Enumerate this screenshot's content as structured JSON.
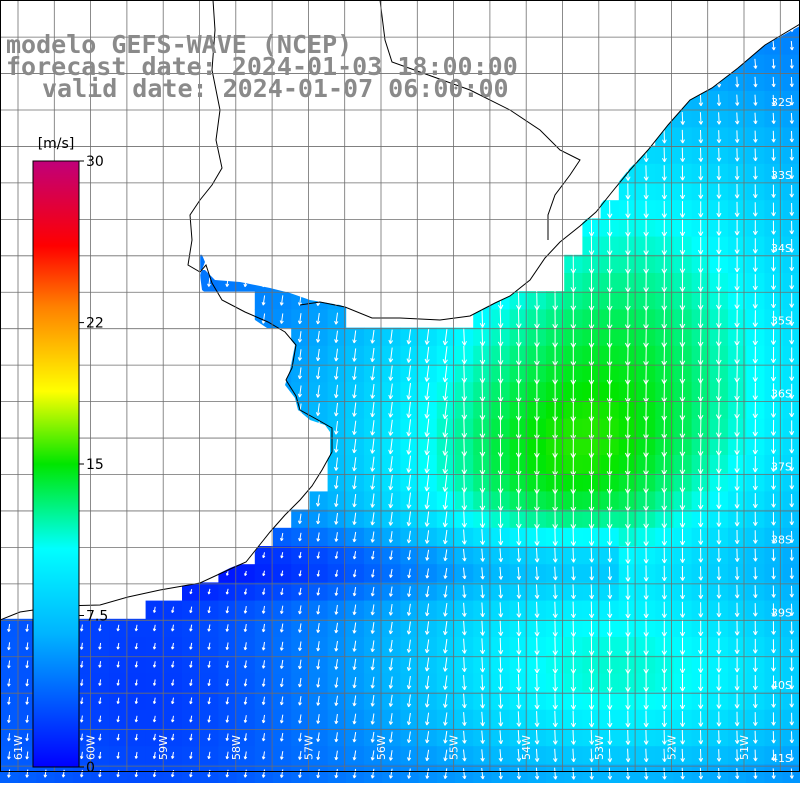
{
  "title": {
    "model": "modelo GEFS-WAVE (NCEP)",
    "forecast": "forecast date: 2024-01-03 18:00:00",
    "valid": "valid date: 2024-01-07 06:00:00"
  },
  "colorbar": {
    "unit": "[m/s]",
    "ticks": [
      {
        "value": 30,
        "label": "30"
      },
      {
        "value": 22,
        "label": "22"
      },
      {
        "value": 15,
        "label": "15"
      },
      {
        "value": 7.5,
        "label": "7.5"
      },
      {
        "value": 0,
        "label": "0"
      }
    ],
    "min": 0,
    "max": 30
  },
  "map": {
    "lon_range": [
      -62,
      -51
    ],
    "lat_range": [
      -41.5,
      -30.5
    ],
    "lon_labels": [
      "61W",
      "60W",
      "59W",
      "58W",
      "57W",
      "56W",
      "55W",
      "54W",
      "53W",
      "52W",
      "51W"
    ],
    "lat_labels": [
      "32S",
      "33S",
      "34S",
      "35S",
      "36S",
      "37S",
      "38S",
      "39S",
      "40S",
      "41S"
    ],
    "grid": true,
    "land_color": "#ffffff",
    "coast_color": "#000000"
  }
}
